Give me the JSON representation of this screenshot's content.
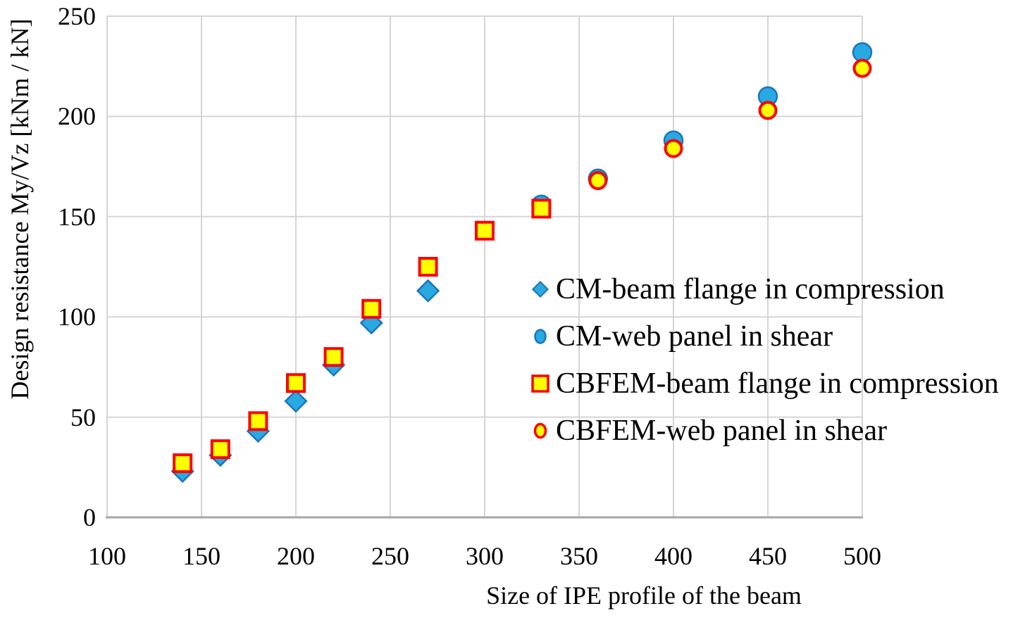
{
  "chart_data": {
    "type": "scatter",
    "title": "",
    "xlabel": "Size of IPE profile of the beam",
    "ylabel": "Design resistance My/Vz [kNm / kN]",
    "xlim": [
      100,
      500
    ],
    "ylim": [
      0,
      250
    ],
    "xticks": [
      100,
      150,
      200,
      250,
      300,
      350,
      400,
      450,
      500
    ],
    "yticks": [
      0,
      50,
      100,
      150,
      200,
      250
    ],
    "grid": true,
    "legend_position": "inside-right-middle",
    "series": [
      {
        "name": "CM-beam flange in compression",
        "marker": "diamond",
        "fill": "#29A9E1",
        "stroke": "#1B75BC",
        "x": [
          140,
          160,
          180,
          200,
          220,
          240,
          270
        ],
        "y": [
          23,
          31,
          43,
          58,
          76,
          97,
          113
        ]
      },
      {
        "name": "CM-web panel in shear",
        "marker": "circle",
        "fill": "#29A9E1",
        "stroke": "#1B75BC",
        "x": [
          330,
          360,
          400,
          450,
          500
        ],
        "y": [
          156,
          169,
          188,
          210,
          232
        ]
      },
      {
        "name": "CBFEM-beam flange in compression",
        "marker": "square",
        "fill": "#FFFF00",
        "stroke": "#FF0000",
        "x": [
          140,
          160,
          180,
          200,
          220,
          240,
          270,
          300,
          330
        ],
        "y": [
          27,
          34,
          48,
          67,
          80,
          104,
          125,
          143,
          154
        ]
      },
      {
        "name": "CBFEM-web panel in shear",
        "marker": "circle-outlined",
        "fill": "#FFFF00",
        "stroke": "#FF0000",
        "x": [
          360,
          400,
          450,
          500
        ],
        "y": [
          168,
          184,
          203,
          224
        ]
      }
    ],
    "colors": {
      "gridline": "#D5D5D5",
      "axis_line": "#A6A6A6",
      "text": "#000000",
      "background": "#FFFFFF"
    }
  }
}
